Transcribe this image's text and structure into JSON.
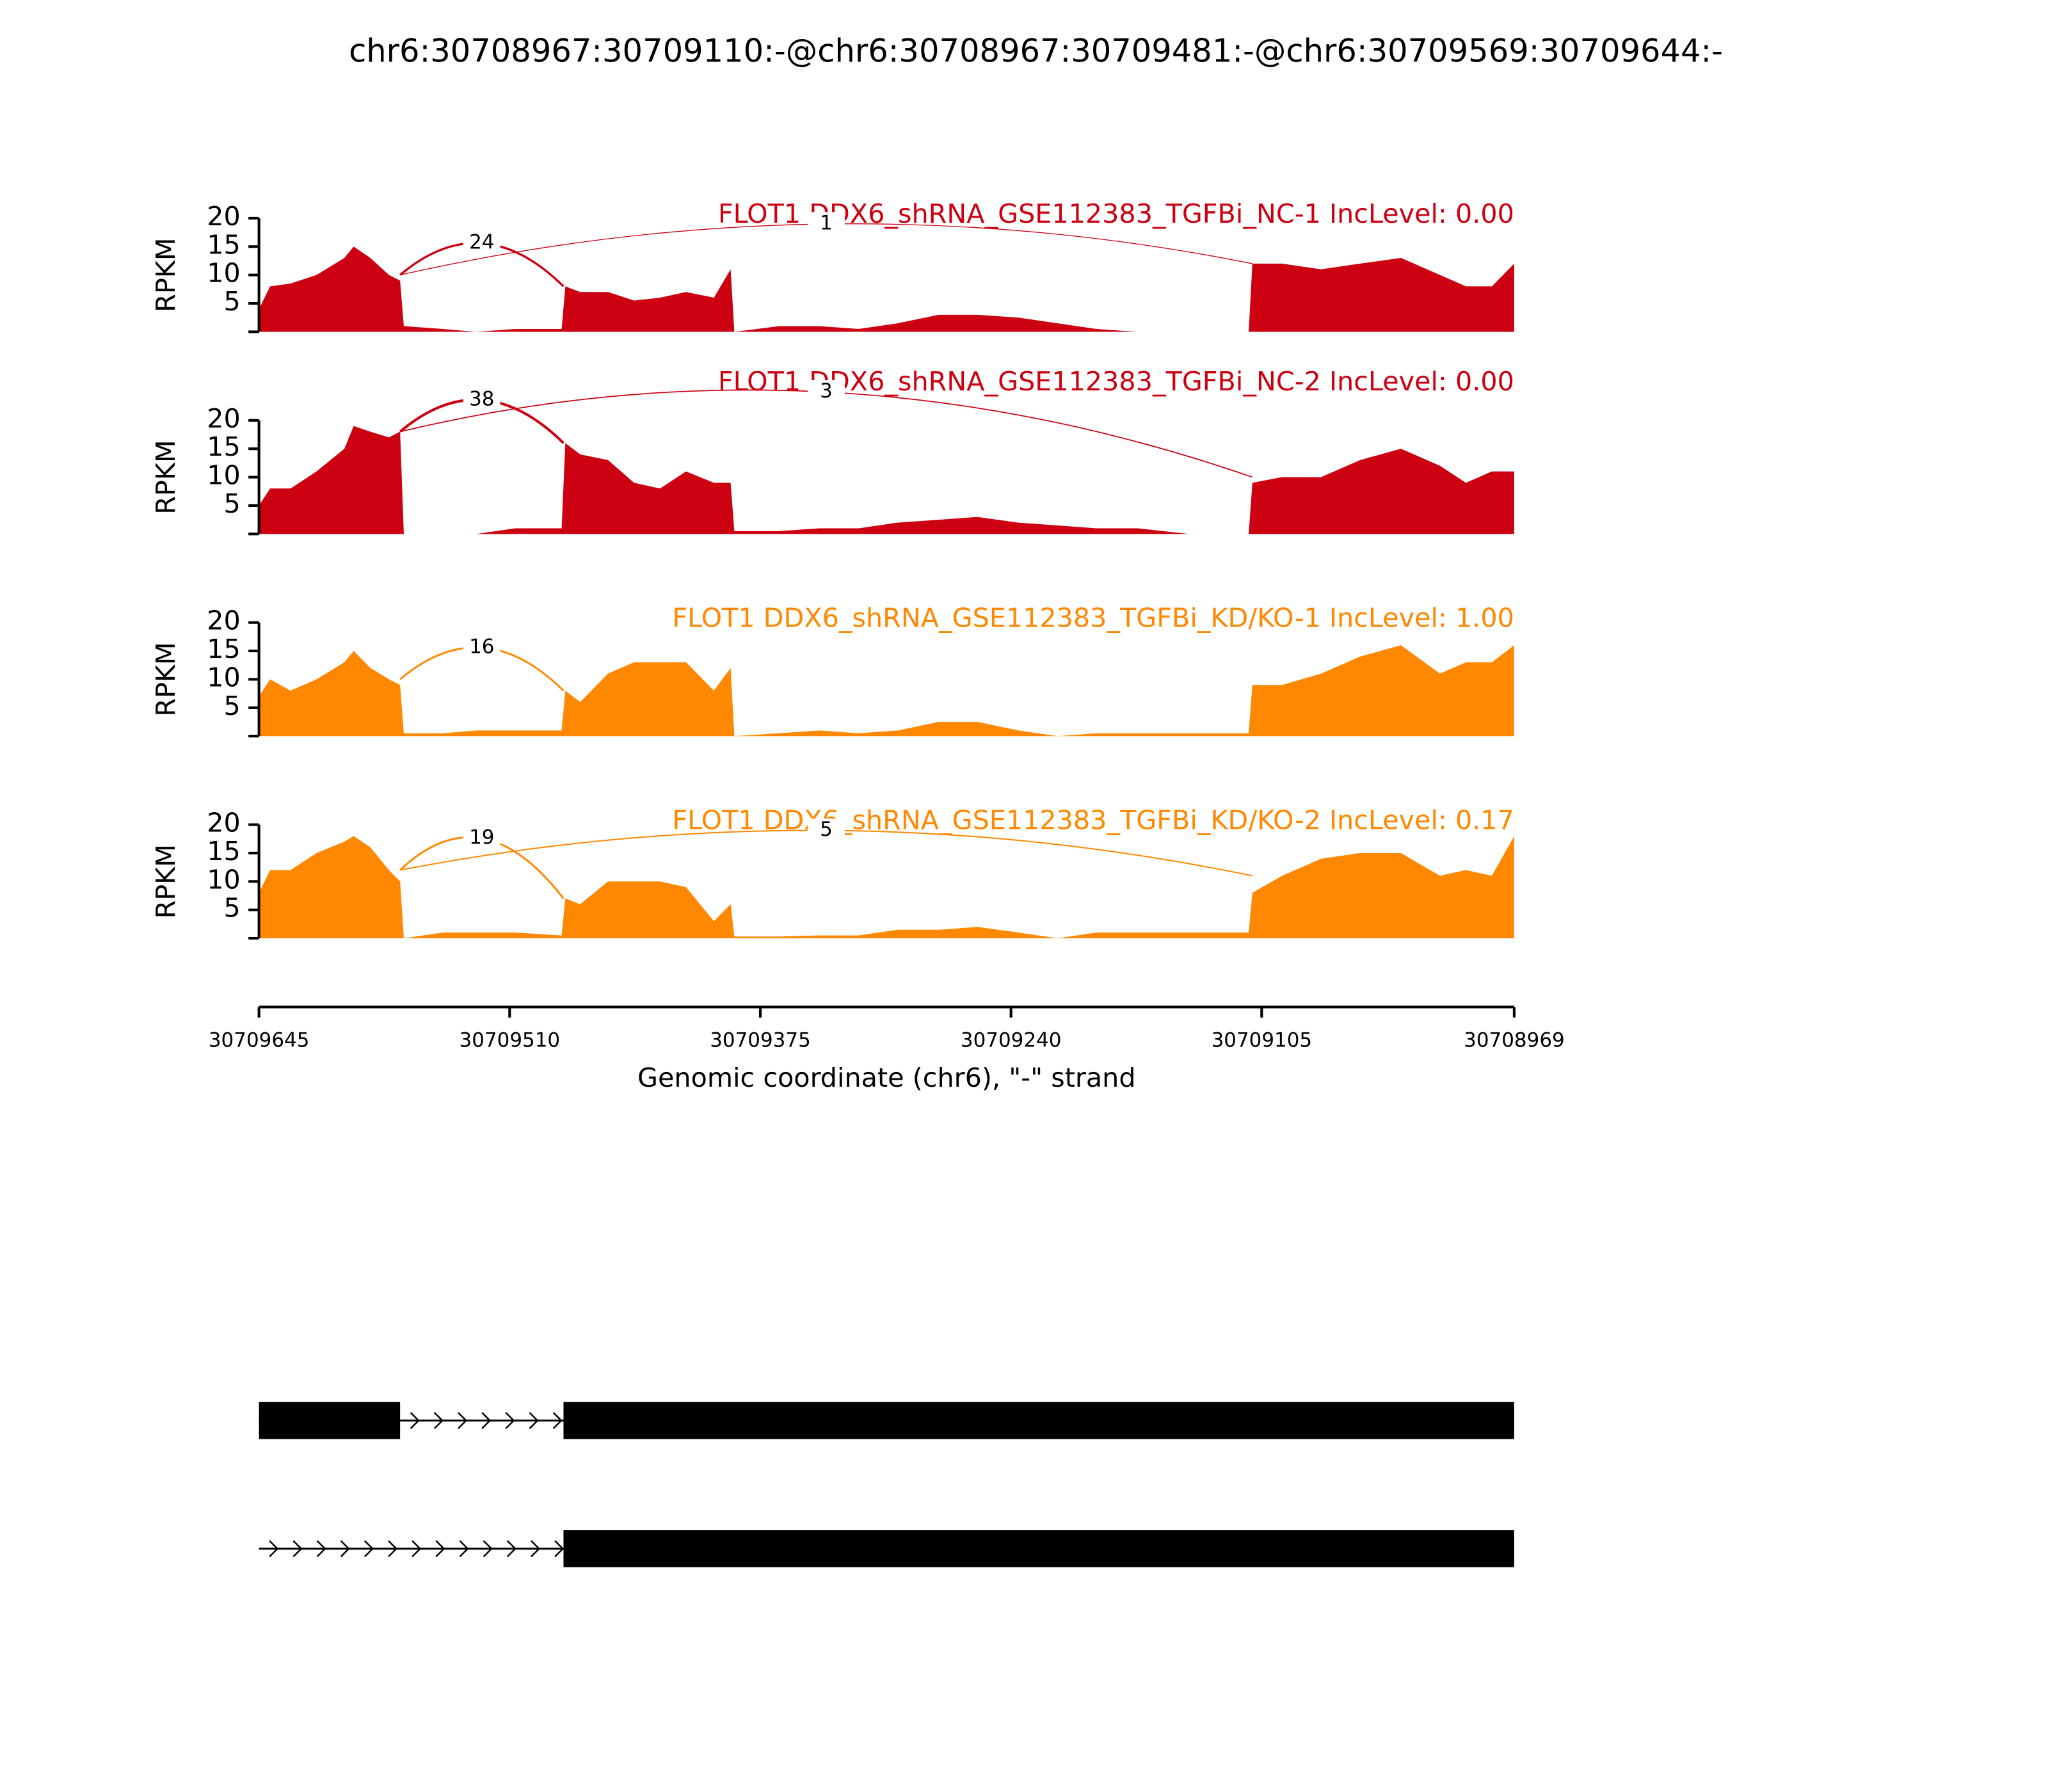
{
  "chart_data": {
    "type": "sashimi",
    "title": "chr6:30708967:30709110:-@chr6:30708967:30709481:-@chr6:30709569:30709644:-",
    "xlabel": "Genomic coordinate (chr6), \"-\" strand",
    "xlim": [
      30709645,
      30708969
    ],
    "xticks": [
      30709645,
      30709510,
      30709375,
      30709240,
      30709105,
      30708969
    ],
    "panels": [
      {
        "type": "area",
        "title": "FLOT1 DDX6_shRNA_GSE112383_TGFBi_NC-1 IncLevel: 0.00",
        "ylabel": "RPKM",
        "color": "#cc0010",
        "ylim": [
          0,
          20
        ],
        "yticks": [
          5,
          10,
          15,
          20
        ],
        "x": [
          30709645,
          30709639,
          30709628,
          30709614,
          30709599,
          30709594,
          30709585,
          30709575,
          30709569,
          30709567,
          30709546,
          30709528,
          30709507,
          30709482,
          30709480,
          30709472,
          30709457,
          30709443,
          30709429,
          30709415,
          30709400,
          30709391,
          30709389,
          30709365,
          30709343,
          30709322,
          30709301,
          30709279,
          30709258,
          30709236,
          30709215,
          30709194,
          30709172,
          30709144,
          30709112,
          30709110,
          30709094,
          30709073,
          30709052,
          30709030,
          30709009,
          30708995,
          30708981,
          30708969
        ],
        "values": [
          4,
          8,
          8.5,
          10,
          13,
          15,
          13,
          10,
          9,
          1,
          0.5,
          0,
          0.5,
          0.5,
          8,
          7,
          7,
          5.5,
          6,
          7,
          6,
          11,
          0,
          1,
          1,
          0.5,
          1.5,
          3,
          3,
          2.5,
          1.5,
          0.5,
          0,
          0,
          0,
          12,
          12,
          11,
          12,
          13,
          10,
          8,
          8,
          12
        ],
        "junctions": [
          {
            "start": 30709569,
            "end": 30709481,
            "count": 24
          },
          {
            "start": 30709569,
            "end": 30709110,
            "count": 1
          }
        ]
      },
      {
        "type": "area",
        "title": "FLOT1 DDX6_shRNA_GSE112383_TGFBi_NC-2 IncLevel: 0.00",
        "ylabel": "RPKM",
        "color": "#cc0010",
        "ylim": [
          0,
          20
        ],
        "yticks": [
          5,
          10,
          15,
          20
        ],
        "x": [
          30709645,
          30709639,
          30709628,
          30709614,
          30709599,
          30709594,
          30709585,
          30709575,
          30709569,
          30709567,
          30709546,
          30709528,
          30709507,
          30709482,
          30709480,
          30709472,
          30709457,
          30709443,
          30709429,
          30709415,
          30709400,
          30709391,
          30709389,
          30709365,
          30709343,
          30709322,
          30709301,
          30709279,
          30709258,
          30709236,
          30709215,
          30709194,
          30709172,
          30709144,
          30709112,
          30709110,
          30709094,
          30709073,
          30709052,
          30709030,
          30709009,
          30708995,
          30708981,
          30708969
        ],
        "values": [
          5,
          8,
          8,
          11,
          15,
          19,
          18,
          17,
          18,
          0,
          0,
          0,
          1,
          1,
          16,
          14,
          13,
          9,
          8,
          11,
          9,
          9,
          0.5,
          0.5,
          1,
          1,
          2,
          2.5,
          3,
          2,
          1.5,
          1,
          1,
          0,
          0,
          9,
          10,
          10,
          13,
          15,
          12,
          9,
          11,
          11
        ],
        "junctions": [
          {
            "start": 30709569,
            "end": 30709481,
            "count": 38
          },
          {
            "start": 30709569,
            "end": 30709110,
            "count": 3
          }
        ]
      },
      {
        "type": "area",
        "title": "FLOT1 DDX6_shRNA_GSE112383_TGFBi_KD/KO-1 IncLevel: 1.00",
        "ylabel": "RPKM",
        "color": "#ff8800",
        "ylim": [
          0,
          20
        ],
        "yticks": [
          5,
          10,
          15,
          20
        ],
        "x": [
          30709645,
          30709639,
          30709628,
          30709614,
          30709599,
          30709594,
          30709585,
          30709575,
          30709569,
          30709567,
          30709546,
          30709528,
          30709507,
          30709482,
          30709480,
          30709472,
          30709457,
          30709443,
          30709429,
          30709415,
          30709400,
          30709391,
          30709389,
          30709365,
          30709343,
          30709322,
          30709301,
          30709279,
          30709258,
          30709236,
          30709215,
          30709194,
          30709172,
          30709144,
          30709112,
          30709110,
          30709094,
          30709073,
          30709052,
          30709030,
          30709009,
          30708995,
          30708981,
          30708969
        ],
        "values": [
          7,
          10,
          8,
          10,
          13,
          15,
          12,
          10,
          9,
          0.5,
          0.5,
          1,
          1,
          1,
          8,
          6,
          11,
          13,
          13,
          13,
          8,
          12,
          0,
          0.5,
          1,
          0.5,
          1,
          2.5,
          2.5,
          1,
          0,
          0.5,
          0.5,
          0.5,
          0.5,
          9,
          9,
          11,
          14,
          16,
          11,
          13,
          13,
          16
        ],
        "junctions": [
          {
            "start": 30709569,
            "end": 30709481,
            "count": 16
          }
        ]
      },
      {
        "type": "area",
        "title": "FLOT1 DDX6_shRNA_GSE112383_TGFBi_KD/KO-2 IncLevel: 0.17",
        "ylabel": "RPKM",
        "color": "#ff8800",
        "ylim": [
          0,
          20
        ],
        "yticks": [
          5,
          10,
          15,
          20
        ],
        "x": [
          30709645,
          30709639,
          30709628,
          30709614,
          30709599,
          30709594,
          30709585,
          30709575,
          30709569,
          30709567,
          30709546,
          30709528,
          30709507,
          30709482,
          30709480,
          30709472,
          30709457,
          30709443,
          30709429,
          30709415,
          30709400,
          30709391,
          30709389,
          30709365,
          30709343,
          30709322,
          30709301,
          30709279,
          30709258,
          30709236,
          30709215,
          30709194,
          30709172,
          30709144,
          30709112,
          30709110,
          30709094,
          30709073,
          30709052,
          30709030,
          30709009,
          30708995,
          30708981,
          30708969
        ],
        "values": [
          8,
          12,
          12,
          15,
          17,
          18,
          16,
          12,
          10,
          0,
          1,
          1,
          1,
          0.5,
          7,
          6,
          10,
          10,
          10,
          9,
          3,
          6,
          0.3,
          0.3,
          0.5,
          0.5,
          1.5,
          1.5,
          2,
          1,
          0,
          1,
          1,
          1,
          1,
          8,
          11,
          14,
          15,
          15,
          11,
          12,
          11,
          18
        ],
        "junctions": [
          {
            "start": 30709569,
            "end": 30709481,
            "count": 19
          },
          {
            "start": 30709569,
            "end": 30709110,
            "count": 5
          }
        ]
      }
    ],
    "transcripts": [
      {
        "start": 30709645,
        "end": 30708969,
        "exons": [
          [
            30709645,
            30709569
          ],
          [
            30709481,
            30708969
          ]
        ]
      },
      {
        "start": 30709645,
        "end": 30708969,
        "exons": [
          [
            30709481,
            30708969
          ]
        ]
      }
    ]
  }
}
